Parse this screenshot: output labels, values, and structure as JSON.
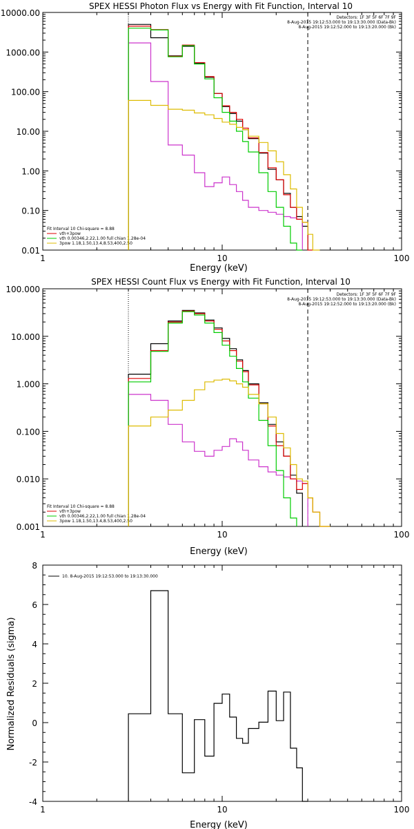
{
  "chart_data": [
    {
      "type": "line",
      "title": "SPEX HESSI Photon Flux vs Energy with Fit Function, Interval 10",
      "xlabel": "Energy (keV)",
      "ylabel": "",
      "xscale": "log",
      "yscale": "log",
      "xlim": [
        1,
        100
      ],
      "ylim": [
        0.01,
        10000
      ],
      "xticks": [
        "1",
        "10",
        "100"
      ],
      "yticks": [
        "10000.00",
        "1000.00",
        "100.00",
        "10.00",
        "1.00",
        "0.10",
        "0.01"
      ],
      "info_lines": [
        "Detectors: 1F 3F 5F 6F 7F 9F",
        "8-Aug-2015 19:12:53.000 to 19:13:30.000 (Data-Bk)",
        "8-Aug-2015 19:12:52.000 to 19:13:20.000 (Bk)"
      ],
      "fit_lines": [
        "Fit Interval 10   Chi-square = 8.88",
        "vth+3pow",
        "vth 0.00346,2.22,1.00  full chian 1.28e-04",
        "3pow 1.18,1.50,13.4,8.53,400,2.50"
      ],
      "bin_edges": [
        3,
        4,
        5,
        6,
        7,
        8,
        9,
        10,
        11,
        12,
        13,
        14,
        16,
        18,
        20,
        22,
        24,
        26,
        28,
        30,
        32,
        35
      ],
      "series": [
        {
          "name": "Data-Bk",
          "color": "#000000",
          "values": [
            5000,
            2300,
            800,
            1400,
            520,
            230,
            90,
            42,
            28,
            18,
            11,
            6.5,
            2.8,
            1.1,
            0.6,
            0.27,
            0.12,
            0.07,
            0.04,
            null,
            null
          ]
        },
        {
          "name": "Bk",
          "color": "#cc33cc",
          "values": [
            1700,
            180,
            4.5,
            2.5,
            0.9,
            0.4,
            0.5,
            0.7,
            0.45,
            0.3,
            0.18,
            0.12,
            0.1,
            0.09,
            0.08,
            0.07,
            0.065,
            0.06,
            null,
            null,
            null
          ]
        },
        {
          "name": "vth+3pow",
          "color": "#dd0000",
          "values": [
            4500,
            3700,
            780,
            1500,
            540,
            240,
            90,
            44,
            30,
            20,
            12,
            6.8,
            2.9,
            1.2,
            0.6,
            0.25,
            0.12,
            0.06,
            0.05,
            0.01,
            null
          ]
        },
        {
          "name": "vth",
          "color": "#00cc00",
          "values": [
            4000,
            3600,
            760,
            1450,
            500,
            210,
            70,
            30,
            18,
            10,
            5.5,
            3,
            0.9,
            0.3,
            0.12,
            0.04,
            0.015,
            0.007,
            null,
            null,
            null
          ]
        },
        {
          "name": "3pow",
          "color": "#ddbb00",
          "values": [
            60,
            45,
            36,
            34,
            29,
            26,
            21,
            17,
            15,
            12.5,
            11,
            7.5,
            5.2,
            3.2,
            1.7,
            0.8,
            0.35,
            0.12,
            0.05,
            0.025,
            0.01
          ]
        }
      ],
      "markers": [
        {
          "x": 3,
          "style": "dotted"
        },
        {
          "x": 30,
          "style": "dashed"
        }
      ]
    },
    {
      "type": "line",
      "title": "SPEX HESSI Count Flux vs Energy with Fit Function, Interval 10",
      "xlabel": "Energy (keV)",
      "ylabel": "",
      "xscale": "log",
      "yscale": "log",
      "xlim": [
        1,
        100
      ],
      "ylim": [
        0.001,
        100
      ],
      "xticks": [
        "1",
        "10",
        "100"
      ],
      "yticks": [
        "100.000",
        "10.000",
        "1.000",
        "0.100",
        "0.010",
        "0.001"
      ],
      "info_lines": [
        "Detectors: 1F 3F 5F 6F 7F 9F",
        "8-Aug-2015 19:12:53.000 to 19:13:30.000 (Data-Bk)",
        "8-Aug-2015 19:12:52.000 to 19:13:20.000 (Bk)"
      ],
      "fit_lines": [
        "Fit Interval 10   Chi-square = 8.88",
        "vth+3pow",
        "vth 0.00346,2.22,1.00  full chian 1.28e-04",
        "3pow 1.18,1.50,13.4,8.53,400,2.50"
      ],
      "bin_edges": [
        3,
        4,
        5,
        6,
        7,
        8,
        9,
        10,
        11,
        12,
        13,
        14,
        16,
        18,
        20,
        22,
        24,
        26,
        28,
        30,
        32,
        35,
        40
      ],
      "series": [
        {
          "name": "Data-Bk",
          "color": "#000000",
          "values": [
            1.6,
            7,
            21,
            35,
            31,
            22,
            15,
            9,
            5.5,
            3.2,
            1.9,
            1.0,
            0.4,
            0.14,
            0.06,
            0.03,
            0.012,
            0.005,
            null,
            null,
            null,
            null
          ]
        },
        {
          "name": "Bk",
          "color": "#cc33cc",
          "values": [
            0.6,
            0.45,
            0.14,
            0.06,
            0.038,
            0.03,
            0.04,
            0.048,
            0.07,
            0.06,
            0.04,
            0.025,
            0.018,
            0.014,
            0.012,
            0.011,
            0.01,
            0.009,
            0.008,
            null,
            null,
            null
          ]
        },
        {
          "name": "vth+3pow",
          "color": "#dd0000",
          "values": [
            1.3,
            5,
            20,
            34,
            30,
            21,
            14,
            8,
            5,
            3,
            1.8,
            0.95,
            0.38,
            0.13,
            0.05,
            0.03,
            0.01,
            0.006,
            0.008,
            0.004,
            0.002,
            0.001
          ]
        },
        {
          "name": "vth",
          "color": "#00cc00",
          "values": [
            1.1,
            4.8,
            19,
            33,
            28,
            19,
            12,
            6.5,
            3.8,
            2.1,
            1.1,
            0.5,
            0.17,
            0.05,
            0.015,
            0.004,
            0.0015,
            null,
            null,
            null,
            null,
            null
          ]
        },
        {
          "name": "3pow",
          "color": "#ddbb00",
          "values": [
            0.13,
            0.2,
            0.28,
            0.45,
            0.75,
            1.1,
            1.2,
            1.25,
            1.15,
            1.0,
            0.85,
            0.6,
            0.38,
            0.2,
            0.09,
            0.045,
            0.02,
            0.01,
            0.009,
            0.004,
            0.002,
            0.001
          ]
        }
      ],
      "markers": [
        {
          "x": 3,
          "style": "dotted"
        },
        {
          "x": 30,
          "style": "dashed"
        }
      ]
    },
    {
      "type": "line",
      "title": "",
      "xlabel": "Energy (keV)",
      "ylabel": "Normalized Residuals (sigma)",
      "xscale": "log",
      "yscale": "linear",
      "xlim": [
        1,
        100
      ],
      "ylim": [
        -4,
        8
      ],
      "xticks": [
        "1",
        "10",
        "100"
      ],
      "yticks": [
        "8",
        "6",
        "4",
        "2",
        "0",
        "-2",
        "-4"
      ],
      "legend": "10.  8-Aug-2015 19:12:53.000 to 19:13:30.000",
      "bin_edges": [
        3,
        4,
        5,
        6,
        7,
        8,
        9,
        10,
        11,
        12,
        13,
        14,
        16,
        18,
        20,
        22,
        24,
        26,
        28,
        30
      ],
      "series": [
        {
          "name": "10.",
          "color": "#000000",
          "values": [
            0.45,
            6.7,
            0.45,
            -2.55,
            0.15,
            -1.7,
            0.98,
            1.45,
            0.28,
            -0.8,
            -1.05,
            -0.3,
            0.02,
            1.6,
            0.1,
            1.55,
            -1.3,
            -2.3,
            -4
          ]
        }
      ]
    }
  ]
}
